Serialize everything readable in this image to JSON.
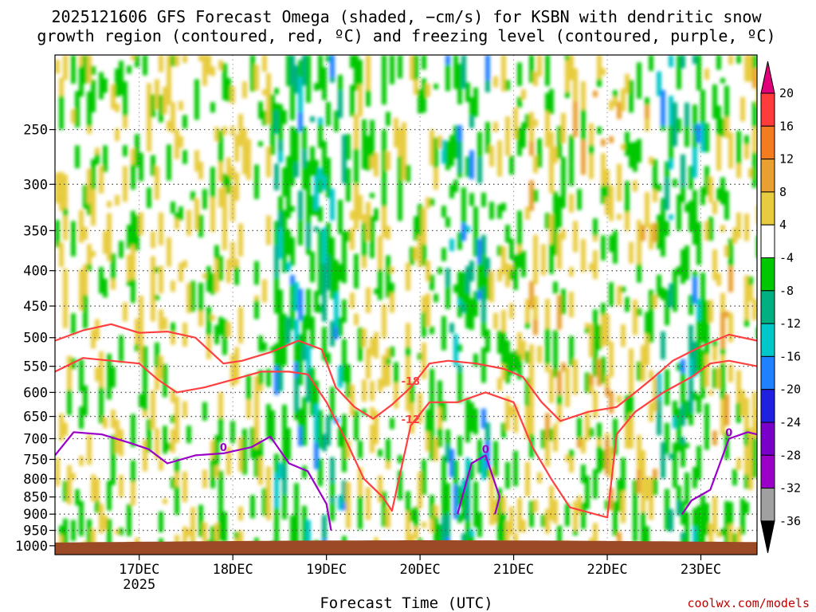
{
  "title_lines": [
    "2025121606 GFS Forecast Omega (shaded, −cm/s) for KSBN with dendritic snow",
    "growth region (contoured, red, ºC) and freezing level (contoured, purple, ºC)"
  ],
  "credit": "coolwx.com/models",
  "colors": {
    "ground": "#9b4a25",
    "dgz_contour": "#ff4040",
    "freezing_contour": "#9b00c8",
    "grid": "#555555"
  },
  "chart_data": {
    "type": "heatmap",
    "xlabel": "Forecast Time (UTC)",
    "x_ticks": [
      {
        "value": 0.9,
        "label": "17DEC",
        "sublabel": "2025"
      },
      {
        "value": 1.9,
        "label": "18DEC",
        "sublabel": ""
      },
      {
        "value": 2.9,
        "label": "19DEC",
        "sublabel": ""
      },
      {
        "value": 3.9,
        "label": "20DEC",
        "sublabel": ""
      },
      {
        "value": 4.9,
        "label": "21DEC",
        "sublabel": ""
      },
      {
        "value": 5.9,
        "label": "22DEC",
        "sublabel": ""
      },
      {
        "value": 6.9,
        "label": "23DEC",
        "sublabel": ""
      }
    ],
    "xlim": [
      0,
      7.5
    ],
    "ylabel": "",
    "y_scale": "log-pressure",
    "y_ticks": [
      250,
      300,
      350,
      400,
      450,
      500,
      550,
      600,
      650,
      700,
      750,
      800,
      850,
      900,
      950,
      1000
    ],
    "ylim": [
      1030,
      195
    ],
    "grid": "dotted",
    "colorbar": {
      "labels": [
        "20",
        "16",
        "12",
        "8",
        "4",
        "-4",
        "-8",
        "-12",
        "-16",
        "-20",
        "-24",
        "-28",
        "-32",
        "-36"
      ],
      "segments": [
        {
          "color": "#ff3c3c",
          "upper": 20
        },
        {
          "color": "#f47c20",
          "upper": 16
        },
        {
          "color": "#e8a030",
          "upper": 12
        },
        {
          "color": "#e8cc40",
          "upper": 8
        },
        {
          "color": "#ffffff",
          "upper": 4
        },
        {
          "color": "#00c800",
          "upper": -4
        },
        {
          "color": "#00b080",
          "upper": -8
        },
        {
          "color": "#00c8c8",
          "upper": -12
        },
        {
          "color": "#2080ff",
          "upper": -16
        },
        {
          "color": "#2020e0",
          "upper": -20
        },
        {
          "color": "#7800c8",
          "upper": -24
        },
        {
          "color": "#9b00c8",
          "upper": -28
        },
        {
          "color": "#a0a0a0",
          "upper": -32
        }
      ],
      "top_arrow_color": "#e0007a",
      "bottom_arrow_color": "#000000"
    },
    "contours": [
      {
        "level": -18,
        "color": "#ff4040",
        "label": "-18",
        "points": [
          [
            0.0,
            505
          ],
          [
            0.3,
            488
          ],
          [
            0.6,
            478
          ],
          [
            0.9,
            492
          ],
          [
            1.2,
            490
          ],
          [
            1.5,
            500
          ],
          [
            1.8,
            545
          ],
          [
            2.0,
            540
          ],
          [
            2.3,
            525
          ],
          [
            2.6,
            505
          ],
          [
            2.85,
            520
          ],
          [
            3.0,
            590
          ],
          [
            3.2,
            630
          ],
          [
            3.4,
            655
          ],
          [
            3.6,
            625
          ],
          [
            3.8,
            590
          ],
          [
            4.0,
            545
          ],
          [
            4.2,
            540
          ],
          [
            4.5,
            545
          ],
          [
            4.8,
            555
          ],
          [
            5.0,
            570
          ],
          [
            5.2,
            620
          ],
          [
            5.4,
            660
          ],
          [
            5.7,
            640
          ],
          [
            6.0,
            630
          ],
          [
            6.2,
            600
          ],
          [
            6.4,
            570
          ],
          [
            6.6,
            540
          ],
          [
            6.9,
            515
          ],
          [
            7.2,
            495
          ],
          [
            7.5,
            505
          ]
        ]
      },
      {
        "level": -12,
        "color": "#ff4040",
        "label": "-12",
        "points": [
          [
            0.0,
            560
          ],
          [
            0.3,
            535
          ],
          [
            0.6,
            540
          ],
          [
            0.9,
            545
          ],
          [
            1.1,
            575
          ],
          [
            1.3,
            600
          ],
          [
            1.6,
            590
          ],
          [
            1.9,
            575
          ],
          [
            2.2,
            560
          ],
          [
            2.5,
            560
          ],
          [
            2.7,
            565
          ],
          [
            2.9,
            620
          ],
          [
            3.1,
            700
          ],
          [
            3.3,
            800
          ],
          [
            3.5,
            850
          ],
          [
            3.6,
            890
          ],
          [
            3.8,
            670
          ],
          [
            4.0,
            620
          ],
          [
            4.3,
            620
          ],
          [
            4.6,
            600
          ],
          [
            4.9,
            620
          ],
          [
            5.1,
            720
          ],
          [
            5.3,
            800
          ],
          [
            5.5,
            880
          ],
          [
            5.9,
            910
          ],
          [
            6.0,
            690
          ],
          [
            6.2,
            640
          ],
          [
            6.5,
            600
          ],
          [
            6.8,
            570
          ],
          [
            7.0,
            545
          ],
          [
            7.2,
            540
          ],
          [
            7.5,
            550
          ]
        ]
      },
      {
        "level": 0,
        "color": "#9b00c8",
        "label": "0",
        "points": [
          [
            0.0,
            740
          ],
          [
            0.2,
            685
          ],
          [
            0.5,
            690
          ],
          [
            0.8,
            710
          ],
          [
            1.0,
            725
          ],
          [
            1.2,
            760
          ],
          [
            1.5,
            740
          ],
          [
            1.8,
            735
          ],
          [
            2.1,
            720
          ],
          [
            2.3,
            695
          ],
          [
            2.5,
            760
          ],
          [
            2.7,
            780
          ],
          [
            2.9,
            870
          ],
          [
            2.95,
            950
          ]
        ]
      },
      {
        "level": 0,
        "color": "#9b00c8",
        "label": "0",
        "points": [
          [
            4.3,
            900
          ],
          [
            4.45,
            760
          ],
          [
            4.6,
            740
          ],
          [
            4.75,
            850
          ],
          [
            4.7,
            900
          ]
        ]
      },
      {
        "level": 0,
        "color": "#9b00c8",
        "label": "0",
        "points": [
          [
            6.7,
            900
          ],
          [
            6.8,
            860
          ],
          [
            7.0,
            830
          ],
          [
            7.2,
            700
          ],
          [
            7.4,
            685
          ],
          [
            7.5,
            690
          ]
        ]
      }
    ]
  }
}
